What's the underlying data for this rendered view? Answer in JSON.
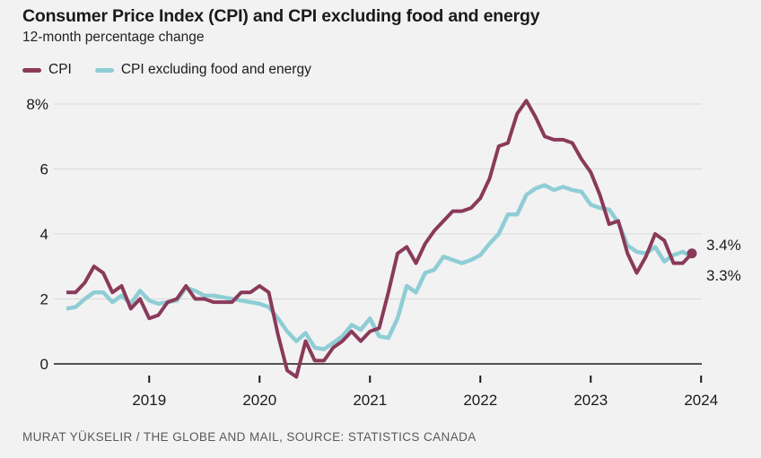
{
  "header": {
    "title": "Consumer Price Index (CPI) and CPI excluding food and energy",
    "subtitle": "12-month percentage change"
  },
  "legend": {
    "items": [
      {
        "label": "CPI",
        "color": "#8a3a59"
      },
      {
        "label": "CPI excluding food and energy",
        "color": "#8fcdd6"
      }
    ]
  },
  "chart_data": {
    "type": "line",
    "x_start": "2018-04",
    "x_frequency": "monthly",
    "x_end": "2023-12",
    "x_tick_labels": [
      "2019",
      "2020",
      "2021",
      "2022",
      "2023",
      "2024"
    ],
    "x_tick_years": [
      2019,
      2020,
      2021,
      2022,
      2023,
      2024
    ],
    "y_ticks": [
      0,
      2,
      4,
      6,
      8
    ],
    "y_tick_labels": [
      "0",
      "2",
      "4",
      "6",
      "8%"
    ],
    "ylim": [
      -0.5,
      8.5
    ],
    "grid": "horizontal",
    "legend_position": "top-left",
    "series": [
      {
        "name": "CPI",
        "color": "#8a3a59",
        "end_label": "3.4%",
        "end_dot": true,
        "values": [
          2.2,
          2.2,
          2.5,
          3.0,
          2.8,
          2.2,
          2.4,
          1.7,
          2.0,
          1.4,
          1.5,
          1.9,
          2.0,
          2.4,
          2.0,
          2.0,
          1.9,
          1.9,
          1.9,
          2.2,
          2.2,
          2.4,
          2.2,
          0.9,
          -0.2,
          -0.4,
          0.7,
          0.1,
          0.1,
          0.5,
          0.7,
          1.0,
          0.7,
          1.0,
          1.1,
          2.2,
          3.4,
          3.6,
          3.1,
          3.7,
          4.1,
          4.4,
          4.7,
          4.7,
          4.8,
          5.1,
          5.7,
          6.7,
          6.8,
          7.7,
          8.1,
          7.6,
          7.0,
          6.9,
          6.9,
          6.8,
          6.3,
          5.9,
          5.2,
          4.3,
          4.4,
          3.4,
          2.8,
          3.3,
          4.0,
          3.8,
          3.1,
          3.1,
          3.4
        ]
      },
      {
        "name": "CPI excluding food and energy",
        "color": "#8fcdd6",
        "end_label": "3.3%",
        "end_dot": false,
        "values": [
          1.7,
          1.75,
          2.0,
          2.2,
          2.2,
          1.9,
          2.1,
          1.85,
          2.25,
          1.95,
          1.85,
          1.9,
          1.95,
          2.35,
          2.25,
          2.1,
          2.1,
          2.05,
          2.0,
          1.95,
          1.9,
          1.85,
          1.75,
          1.4,
          1.0,
          0.7,
          0.95,
          0.5,
          0.45,
          0.65,
          0.85,
          1.2,
          1.05,
          1.4,
          0.85,
          0.8,
          1.4,
          2.4,
          2.2,
          2.8,
          2.9,
          3.3,
          3.2,
          3.1,
          3.2,
          3.35,
          3.7,
          4.0,
          4.6,
          4.6,
          5.2,
          5.4,
          5.5,
          5.35,
          5.45,
          5.35,
          5.3,
          4.9,
          4.8,
          4.75,
          4.35,
          3.65,
          3.45,
          3.4,
          3.6,
          3.15,
          3.35,
          3.45,
          3.3
        ]
      }
    ]
  },
  "footer": {
    "credit": "MURAT YÜKSELIR / THE GLOBE AND MAIL, SOURCE: STATISTICS CANADA"
  },
  "colors": {
    "background": "#f2f2f2",
    "grid": "#d9d9d9",
    "axis": "#1a1a1a",
    "text": "#1a1a1a",
    "subtext": "#595959"
  }
}
